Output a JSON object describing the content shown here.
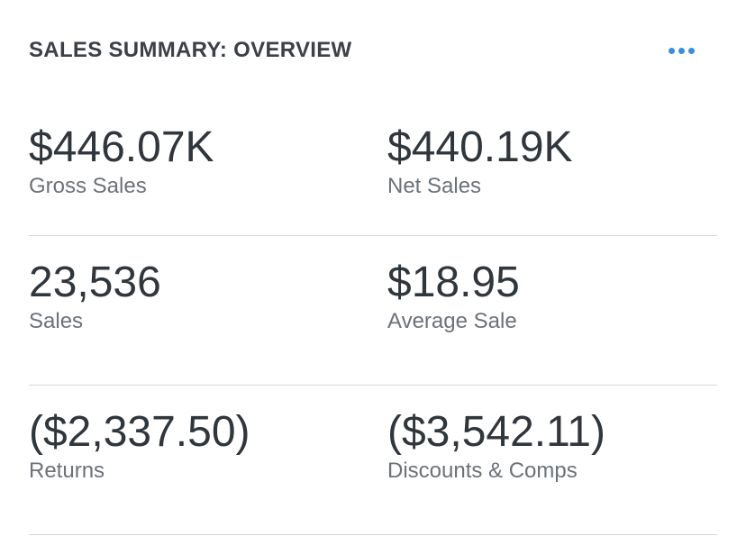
{
  "header": {
    "title": "SALES SUMMARY: OVERVIEW",
    "more_icon": "ellipsis-horizontal-icon",
    "accent_color": "#3b8fd6"
  },
  "stats": {
    "gross_sales": {
      "value": "$446.07K",
      "label": "Gross Sales"
    },
    "net_sales": {
      "value": "$440.19K",
      "label": "Net Sales"
    },
    "sales": {
      "value": "23,536",
      "label": "Sales"
    },
    "average_sale": {
      "value": "$18.95",
      "label": "Average Sale"
    },
    "returns": {
      "value": "($2,337.50)",
      "label": "Returns"
    },
    "discounts_comps": {
      "value": "($3,542.11)",
      "label": "Discounts & Comps"
    }
  }
}
